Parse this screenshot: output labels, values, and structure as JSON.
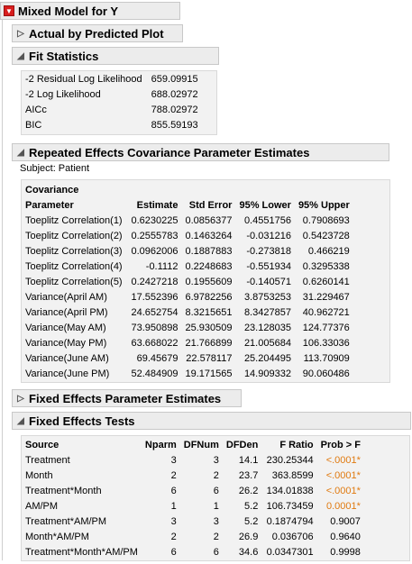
{
  "report": {
    "title": "Mixed Model for Y",
    "menu_icon": "red-triangle-icon"
  },
  "actual_by_predicted": {
    "title": "Actual by Predicted Plot",
    "state": "collapsed"
  },
  "fit_statistics": {
    "title": "Fit Statistics",
    "rows": [
      {
        "label": "-2 Residual Log Likelihood",
        "value": "659.09915"
      },
      {
        "label": "-2 Log Likelihood",
        "value": "688.02972"
      },
      {
        "label": "AICc",
        "value": "788.02972"
      },
      {
        "label": "BIC",
        "value": "855.59193"
      }
    ]
  },
  "repeated_effects": {
    "title": "Repeated Effects Covariance Parameter Estimates",
    "subject": "Subject: Patient",
    "headers": {
      "param_line1": "Covariance",
      "param_line2": "Parameter",
      "estimate": "Estimate",
      "std_error": "Std Error",
      "lower": "95% Lower",
      "upper": "95% Upper"
    },
    "rows": [
      {
        "param": "Toeplitz Correlation(1)",
        "estimate": "0.6230225",
        "std_error": "0.0856377",
        "lower": "0.4551756",
        "upper": "0.7908693"
      },
      {
        "param": "Toeplitz Correlation(2)",
        "estimate": "0.2555783",
        "std_error": "0.1463264",
        "lower": "-0.031216",
        "upper": "0.5423728"
      },
      {
        "param": "Toeplitz Correlation(3)",
        "estimate": "0.0962006",
        "std_error": "0.1887883",
        "lower": "-0.273818",
        "upper": "0.466219"
      },
      {
        "param": "Toeplitz Correlation(4)",
        "estimate": "-0.1112",
        "std_error": "0.2248683",
        "lower": "-0.551934",
        "upper": "0.3295338"
      },
      {
        "param": "Toeplitz Correlation(5)",
        "estimate": "0.2427218",
        "std_error": "0.1955609",
        "lower": "-0.140571",
        "upper": "0.6260141"
      },
      {
        "param": "Variance(April AM)",
        "estimate": "17.552396",
        "std_error": "6.9782256",
        "lower": "3.8753253",
        "upper": "31.229467"
      },
      {
        "param": "Variance(April PM)",
        "estimate": "24.652754",
        "std_error": "8.3215651",
        "lower": "8.3427857",
        "upper": "40.962721"
      },
      {
        "param": "Variance(May AM)",
        "estimate": "73.950898",
        "std_error": "25.930509",
        "lower": "23.128035",
        "upper": "124.77376"
      },
      {
        "param": "Variance(May PM)",
        "estimate": "63.668022",
        "std_error": "21.766899",
        "lower": "21.005684",
        "upper": "106.33036"
      },
      {
        "param": "Variance(June AM)",
        "estimate": "69.45679",
        "std_error": "22.578117",
        "lower": "25.204495",
        "upper": "113.70909"
      },
      {
        "param": "Variance(June PM)",
        "estimate": "52.484909",
        "std_error": "19.171565",
        "lower": "14.909332",
        "upper": "90.060486"
      }
    ]
  },
  "fixed_effects_params": {
    "title": "Fixed Effects Parameter Estimates",
    "state": "collapsed"
  },
  "fixed_effects_tests": {
    "title": "Fixed Effects Tests",
    "headers": {
      "source": "Source",
      "nparm": "Nparm",
      "dfnum": "DFNum",
      "dfden": "DFDen",
      "fratio": "F Ratio",
      "prob": "Prob > F"
    },
    "rows": [
      {
        "source": "Treatment",
        "nparm": "3",
        "dfnum": "3",
        "dfden": "14.1",
        "fratio": "230.25344",
        "prob": "<.0001*",
        "significant": true
      },
      {
        "source": "Month",
        "nparm": "2",
        "dfnum": "2",
        "dfden": "23.7",
        "fratio": "363.8599",
        "prob": "<.0001*",
        "significant": true
      },
      {
        "source": "Treatment*Month",
        "nparm": "6",
        "dfnum": "6",
        "dfden": "26.2",
        "fratio": "134.01838",
        "prob": "<.0001*",
        "significant": true
      },
      {
        "source": "AM/PM",
        "nparm": "1",
        "dfnum": "1",
        "dfden": "5.2",
        "fratio": "106.73459",
        "prob": "0.0001*",
        "significant": true
      },
      {
        "source": "Treatment*AM/PM",
        "nparm": "3",
        "dfnum": "3",
        "dfden": "5.2",
        "fratio": "0.1874794",
        "prob": "0.9007",
        "significant": false
      },
      {
        "source": "Month*AM/PM",
        "nparm": "2",
        "dfnum": "2",
        "dfden": "26.9",
        "fratio": "0.036706",
        "prob": "0.9640",
        "significant": false
      },
      {
        "source": "Treatment*Month*AM/PM",
        "nparm": "6",
        "dfnum": "6",
        "dfden": "34.6",
        "fratio": "0.0347301",
        "prob": "0.9998",
        "significant": false
      }
    ]
  },
  "colors": {
    "significant_p": "#e07a10",
    "menu_red": "#d81e1e"
  }
}
